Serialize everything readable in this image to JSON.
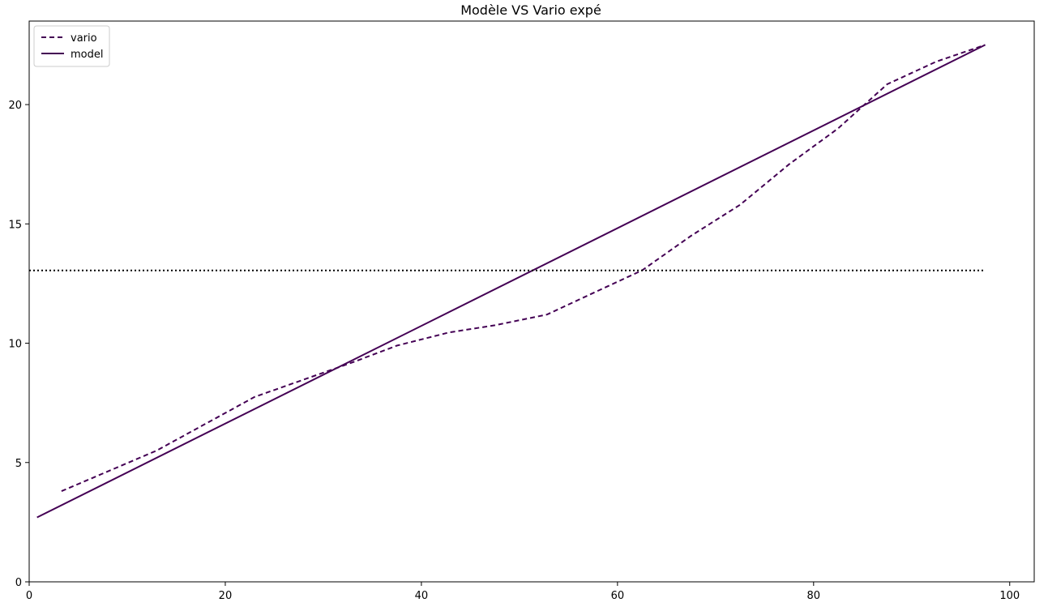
{
  "chart_data": {
    "type": "line",
    "title": "Modèle VS Vario expé",
    "xlabel": "",
    "ylabel": "",
    "xlim": [
      0,
      102.5
    ],
    "ylim": [
      0,
      23.5
    ],
    "xticks": [
      0,
      20,
      40,
      60,
      80,
      100
    ],
    "yticks": [
      0,
      5,
      10,
      15,
      20
    ],
    "grid": false,
    "legend_position": "top-left",
    "series": [
      {
        "name": "vario",
        "style": "dashed",
        "color": "#440154",
        "x": [
          3.3,
          13.0,
          23.0,
          33.0,
          37.5,
          42.8,
          47.5,
          52.8,
          57.5,
          62.5,
          67.5,
          72.5,
          77.5,
          82.5,
          87.5,
          92.5,
          97.5
        ],
        "y": [
          3.8,
          5.5,
          7.75,
          9.2,
          9.9,
          10.45,
          10.75,
          11.2,
          12.1,
          13.05,
          14.5,
          15.8,
          17.5,
          19.0,
          20.85,
          21.8,
          22.5
        ]
      },
      {
        "name": "model",
        "style": "solid",
        "color": "#440154",
        "x": [
          0.8,
          97.5
        ],
        "y": [
          2.7,
          22.5
        ]
      },
      {
        "style": "dotted",
        "color": "#000000",
        "x": [
          0.0,
          97.5
        ],
        "y": [
          13.05,
          13.05
        ]
      }
    ]
  }
}
